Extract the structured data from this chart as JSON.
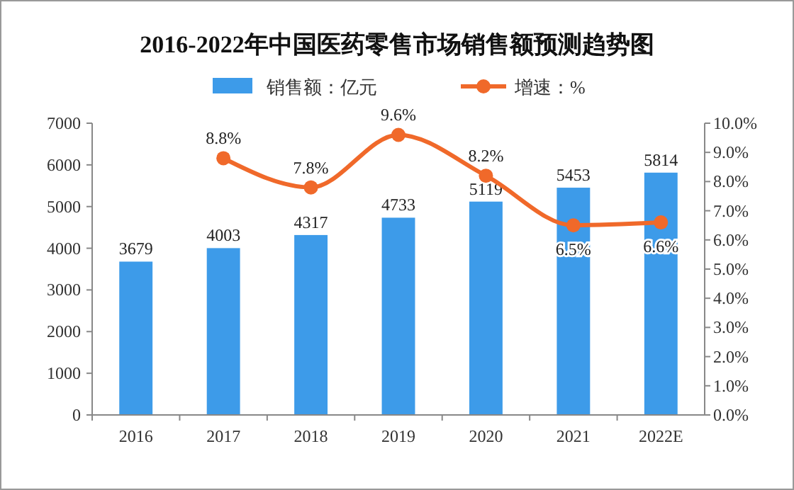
{
  "chart_data": {
    "type": "bar",
    "title": "2016-2022年中国医药零售市场销售额预测趋势图",
    "categories": [
      "2016",
      "2017",
      "2018",
      "2019",
      "2020",
      "2021",
      "2022E"
    ],
    "series": [
      {
        "name": "销售额：亿元",
        "color": "#3d9be9",
        "values": [
          3679,
          4003,
          4317,
          4733,
          5119,
          5453,
          5814
        ],
        "value_labels": [
          "3679",
          "4003",
          "4317",
          "4733",
          "5119",
          "5453",
          "5814"
        ]
      },
      {
        "name": "增速：%",
        "type": "line",
        "axis": "y2",
        "color": "#f0692a",
        "marker": "circle",
        "values": [
          null,
          8.8,
          7.8,
          9.6,
          8.2,
          6.5,
          6.6
        ],
        "value_labels": [
          null,
          "8.8%",
          "7.8%",
          "9.6%",
          "8.2%",
          "6.5%",
          "6.6%"
        ]
      }
    ],
    "ylim": [
      0,
      7000
    ],
    "yticks": [
      0,
      1000,
      2000,
      3000,
      4000,
      5000,
      6000,
      7000
    ],
    "y2lim": [
      0,
      10
    ],
    "y2ticks": [
      {
        "value": 0,
        "label": "0.0%"
      },
      {
        "value": 1,
        "label": "1.0%"
      },
      {
        "value": 2,
        "label": "2.0%"
      },
      {
        "value": 3,
        "label": "3.0%"
      },
      {
        "value": 4,
        "label": "4.0%"
      },
      {
        "value": 5,
        "label": "5.0%"
      },
      {
        "value": 6,
        "label": "6.0%"
      },
      {
        "value": 7,
        "label": "7.0%"
      },
      {
        "value": 8,
        "label": "8.0%"
      },
      {
        "value": 9,
        "label": "9.0%"
      },
      {
        "value": 10,
        "label": "10.0%"
      }
    ],
    "legend": "top",
    "grid": false
  }
}
